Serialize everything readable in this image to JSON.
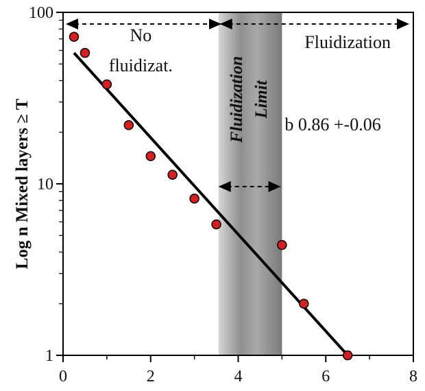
{
  "chart_data": {
    "type": "scatter",
    "title": "",
    "xlabel": "",
    "ylabel": "Log n  Mixed layers ≥ T",
    "xlim": [
      0,
      8
    ],
    "ylim": [
      1,
      100
    ],
    "yscale": "log",
    "x_ticks": [
      "0",
      "2",
      "4",
      "6",
      "8"
    ],
    "y_ticks": [
      "1",
      "10",
      "100"
    ],
    "points": {
      "x": [
        0.25,
        0.5,
        1.0,
        1.5,
        2.0,
        2.5,
        3.0,
        3.5,
        5.0,
        5.5,
        6.5
      ],
      "y": [
        72,
        58,
        38,
        22,
        14.5,
        11.3,
        8.2,
        5.8,
        4.4,
        2.0,
        1.0
      ],
      "color": "#d42020"
    },
    "fit_line": {
      "x": [
        0.25,
        6.5
      ],
      "y": [
        58,
        1.0
      ],
      "color": "#000000"
    },
    "fluidization_band": {
      "x_range": [
        3.55,
        5.0
      ],
      "color": "#8a8a8a"
    },
    "annotations": {
      "no_fluid": [
        "No",
        "fluidizat."
      ],
      "fluid": "Fluidization",
      "limit": [
        "Fluidization",
        "Limit"
      ],
      "slope": "b   0.86 +-0.06"
    }
  }
}
